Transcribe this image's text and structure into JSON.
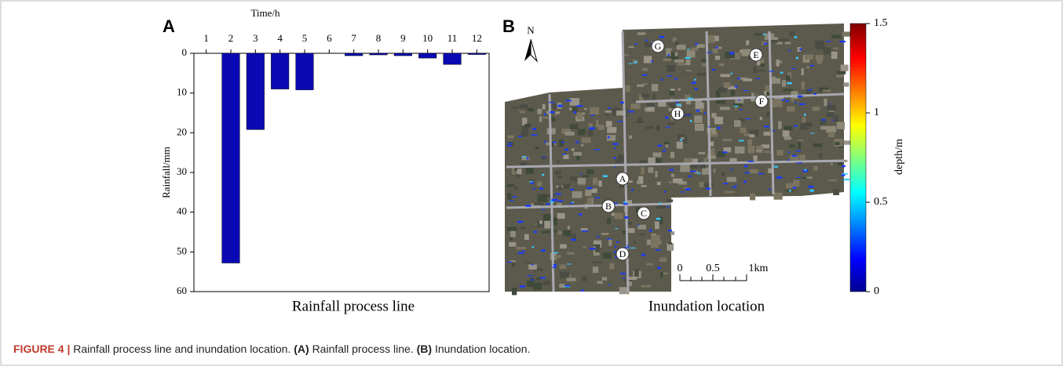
{
  "chart_data": {
    "type": "bar",
    "panel_label": "A",
    "title": "Time/h",
    "ylabel": "Rainfall/mm",
    "subtitle": "Rainfall process line",
    "categories": [
      "1",
      "2",
      "3",
      "4",
      "5",
      "6",
      "7",
      "8",
      "9",
      "10",
      "11",
      "12"
    ],
    "values": [
      0,
      52.8,
      19.2,
      9,
      9.2,
      0,
      0.6,
      0.4,
      0.6,
      1.2,
      2.8,
      0.3
    ],
    "color": "#0a0ab4",
    "ylim": [
      0,
      60
    ],
    "yticks": [
      0,
      10,
      20,
      30,
      40,
      50,
      60
    ],
    "y_inverted": true,
    "x_axis_top": true
  },
  "panel_b": {
    "panel_label": "B",
    "north": "N",
    "subtitle": "Inundation location",
    "locations": [
      "G",
      "E",
      "F",
      "H",
      "A",
      "B",
      "C",
      "D"
    ],
    "scale_labels": [
      "0",
      "0.5",
      "1km"
    ],
    "colorbar": {
      "label": "depth/m",
      "lim": [
        0,
        1.5
      ],
      "ticks": [
        0,
        0.5,
        1,
        1.5
      ]
    }
  },
  "caption": {
    "figure": "FIGURE 4 |",
    "text1": "Rainfall process line and inundation location.",
    "a": "(A)",
    "text2": "Rainfall process line.",
    "b": "(B)",
    "text3": "Inundation location."
  }
}
